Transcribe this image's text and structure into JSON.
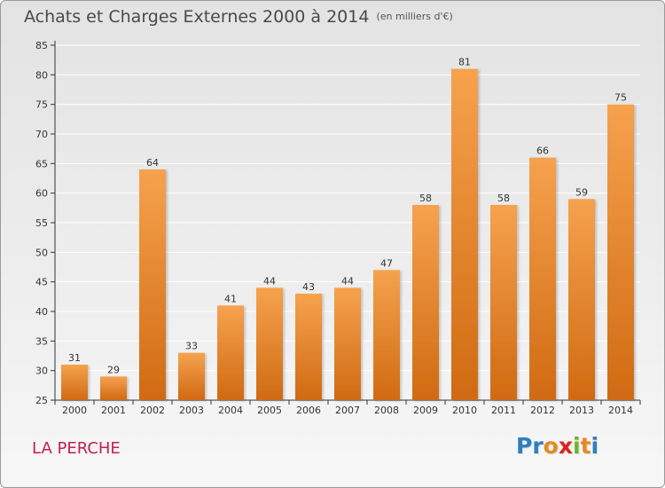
{
  "header": {
    "title": "Achats et Charges Externes 2000 à 2014",
    "subtitle": "(en milliers d'€)"
  },
  "footer": {
    "commune": "LA PERCHE",
    "logo_letters": [
      {
        "char": "P",
        "color": "#2e7fc1"
      },
      {
        "char": "r",
        "color": "#2e7fc1"
      },
      {
        "char": "o",
        "color": "#e58a1f"
      },
      {
        "char": "x",
        "color": "#d8261c"
      },
      {
        "char": "i",
        "color": "#73b12e"
      },
      {
        "char": "t",
        "color": "#e58a1f"
      },
      {
        "char": "i",
        "color": "#2e7fc1"
      }
    ]
  },
  "colors": {
    "bar_light": "#f6a24e",
    "bar_dark": "#d06a12",
    "axis": "#333333",
    "grid": "#ffffff"
  },
  "chart_data": {
    "type": "bar",
    "title": "Achats et Charges Externes 2000 à 2014",
    "subtitle": "(en milliers d'€)",
    "categories": [
      "2000",
      "2001",
      "2002",
      "2003",
      "2004",
      "2005",
      "2006",
      "2007",
      "2008",
      "2009",
      "2010",
      "2011",
      "2012",
      "2013",
      "2014"
    ],
    "values": [
      31,
      29,
      64,
      33,
      41,
      44,
      43,
      44,
      47,
      58,
      81,
      58,
      66,
      59,
      75
    ],
    "ylim": [
      25,
      85
    ],
    "yticks": [
      25,
      30,
      35,
      40,
      45,
      50,
      55,
      60,
      65,
      70,
      75,
      80,
      85
    ],
    "grid": true,
    "data_labels": true
  }
}
